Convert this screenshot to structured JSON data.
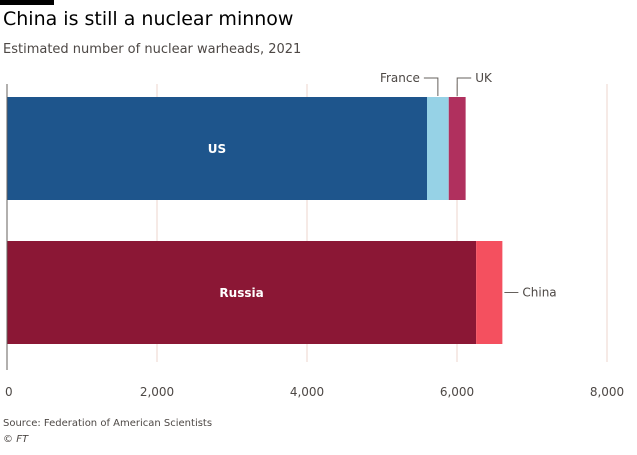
{
  "header": {
    "title": "China is still a nuclear minnow",
    "subtitle": "Estimated number of nuclear warheads, 2021"
  },
  "footer": {
    "source": "Source: Federation of American Scientists",
    "copyright_symbol": "©",
    "copyright_brand": "FT"
  },
  "colors": {
    "us": "#1e558c",
    "france": "#96d2e6",
    "uk": "#b0305e",
    "russia": "#8b1735",
    "china": "#f4505f",
    "grid": "#ecd5cc",
    "axis": "#66605c"
  },
  "chart_data": {
    "type": "bar",
    "orientation": "horizontal",
    "stacked": true,
    "title": "China is still a nuclear minnow",
    "subtitle": "Estimated number of nuclear warheads, 2021",
    "xlim": [
      0,
      8000
    ],
    "xticks": [
      0,
      2000,
      4000,
      6000,
      8000
    ],
    "xtick_labels": [
      "0",
      "2,000",
      "4,000",
      "6,000",
      "8,000"
    ],
    "grid": true,
    "bars": [
      {
        "segments": [
          {
            "name": "US",
            "value": 5600,
            "color": "#1e558c",
            "label_position": "inside"
          },
          {
            "name": "France",
            "value": 290,
            "color": "#96d2e6",
            "label_position": "above"
          },
          {
            "name": "UK",
            "value": 225,
            "color": "#b0305e",
            "label_position": "above"
          }
        ]
      },
      {
        "segments": [
          {
            "name": "Russia",
            "value": 6255,
            "color": "#8b1735",
            "label_position": "inside"
          },
          {
            "name": "China",
            "value": 350,
            "color": "#f4505f",
            "label_position": "right"
          }
        ]
      }
    ]
  }
}
